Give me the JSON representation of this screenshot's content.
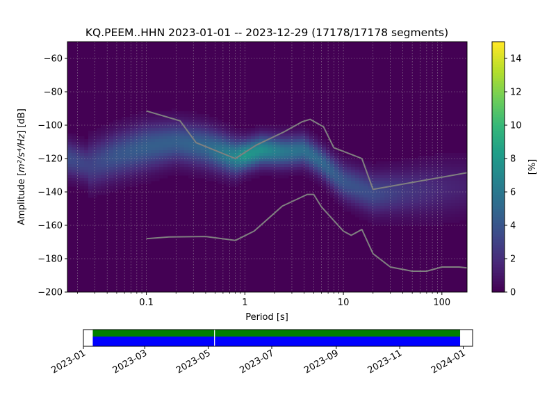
{
  "chart_data": [
    {
      "type": "heatmap",
      "title": "KQ.PEEM..HHN   2023-01-01 -- 2023-12-29  (17178/17178 segments)",
      "xlabel": "Period [s]",
      "ylabel_main": "Amplitude [",
      "ylabel_math": "m²/s⁴/Hz",
      "ylabel_end": "] [dB]",
      "x_scale": "log",
      "xlim": [
        0.0158,
        180
      ],
      "ylim": [
        -200,
        -50
      ],
      "x_ticks": [
        {
          "value": 0.1,
          "label": "0.1"
        },
        {
          "value": 1,
          "label": "1"
        },
        {
          "value": 10,
          "label": "10"
        },
        {
          "value": 100,
          "label": "100"
        }
      ],
      "y_ticks": [
        {
          "value": -60,
          "label": "−60"
        },
        {
          "value": -80,
          "label": "−80"
        },
        {
          "value": -100,
          "label": "−100"
        },
        {
          "value": -120,
          "label": "−120"
        },
        {
          "value": -140,
          "label": "−140"
        },
        {
          "value": -160,
          "label": "−160"
        },
        {
          "value": -180,
          "label": "−180"
        },
        {
          "value": -200,
          "label": "−200"
        }
      ],
      "grid": true,
      "background_color": "#440154",
      "colorbar": {
        "label": "[%]",
        "range": [
          0,
          15
        ],
        "ticks": [
          {
            "value": 0,
            "label": "0"
          },
          {
            "value": 2,
            "label": "2"
          },
          {
            "value": 4,
            "label": "4"
          },
          {
            "value": 6,
            "label": "6"
          },
          {
            "value": 8,
            "label": "8"
          },
          {
            "value": 10,
            "label": "10"
          },
          {
            "value": 12,
            "label": "12"
          },
          {
            "value": 14,
            "label": "14"
          }
        ],
        "colormap": [
          "#440154",
          "#482878",
          "#3e4989",
          "#31688e",
          "#26828e",
          "#1f9e89",
          "#35b779",
          "#6ece58",
          "#b5de2b",
          "#fde725"
        ]
      },
      "density_band": [
        {
          "period": 0.0158,
          "center": -120,
          "half_width": 7,
          "peak": 3.5
        },
        {
          "period": 0.026,
          "center": -124,
          "half_width": 7,
          "peak": 3.0
        },
        {
          "period": 0.0265,
          "center": -124,
          "half_width": 9,
          "peak": 3.0
        },
        {
          "period": 0.05,
          "center": -118,
          "half_width": 9,
          "peak": 4.0
        },
        {
          "period": 0.1,
          "center": -113,
          "half_width": 9,
          "peak": 4.5
        },
        {
          "period": 0.2,
          "center": -110,
          "half_width": 8,
          "peak": 4.5
        },
        {
          "period": 0.4,
          "center": -113,
          "half_width": 8,
          "peak": 5.0
        },
        {
          "period": 0.8,
          "center": -119,
          "half_width": 7,
          "peak": 7.0
        },
        {
          "period": 1.0,
          "center": -118,
          "half_width": 6,
          "peak": 8.0
        },
        {
          "period": 1.5,
          "center": -115,
          "half_width": 6,
          "peak": 7.5
        },
        {
          "period": 2.5,
          "center": -116,
          "half_width": 6,
          "peak": 6.0
        },
        {
          "period": 4.0,
          "center": -115,
          "half_width": 6,
          "peak": 5.5
        },
        {
          "period": 6.0,
          "center": -122,
          "half_width": 6,
          "peak": 5.0
        },
        {
          "period": 10,
          "center": -134,
          "half_width": 7,
          "peak": 4.0
        },
        {
          "period": 20,
          "center": -141,
          "half_width": 8,
          "peak": 3.5
        },
        {
          "period": 40,
          "center": -140,
          "half_width": 9,
          "peak": 2.5
        },
        {
          "period": 100,
          "center": -138,
          "half_width": 11,
          "peak": 1.6
        },
        {
          "period": 180,
          "center": -137,
          "half_width": 11,
          "peak": 1.3
        }
      ],
      "series": [
        {
          "x": [
            0.1,
            0.22,
            0.32,
            0.8,
            1.3,
            2.5,
            3.8,
            4.6,
            6.3,
            8.0,
            15.4,
            20.0,
            180
          ],
          "y": [
            -91.5,
            -97.4,
            -110.5,
            -120.0,
            -112.0,
            -104.0,
            -98.0,
            -96.5,
            -101.0,
            -113.5,
            -120.0,
            -138.5,
            -128.5
          ]
        },
        {
          "x": [
            0.1,
            0.17,
            0.4,
            0.8,
            1.24,
            2.4,
            4.3,
            5.0,
            6.0,
            10.0,
            12.0,
            15.4,
            20.0,
            30.0,
            50.0,
            70.0,
            100.0,
            150.0,
            180.0
          ],
          "y": [
            -168,
            -167,
            -166.7,
            -169.1,
            -163.5,
            -148.5,
            -141.5,
            -141.5,
            -149.0,
            -163.5,
            -166.0,
            -162.5,
            -177.0,
            -185.0,
            -187.5,
            -187.5,
            -185.0,
            -185.0,
            -185.5
          ]
        }
      ]
    },
    {
      "type": "bar",
      "x_axis": "date",
      "xlim": [
        "2023-01-01",
        "2024-01-10"
      ],
      "x_ticks": [
        "2023-01",
        "2023-03",
        "2023-05",
        "2023-07",
        "2023-09",
        "2023-11",
        "2024-01"
      ],
      "coverage_range": [
        "2023-01-10",
        "2023-12-29"
      ],
      "gap_date": "2023-05-07",
      "bar_colors": [
        "#008000",
        "#0000ff"
      ]
    }
  ]
}
